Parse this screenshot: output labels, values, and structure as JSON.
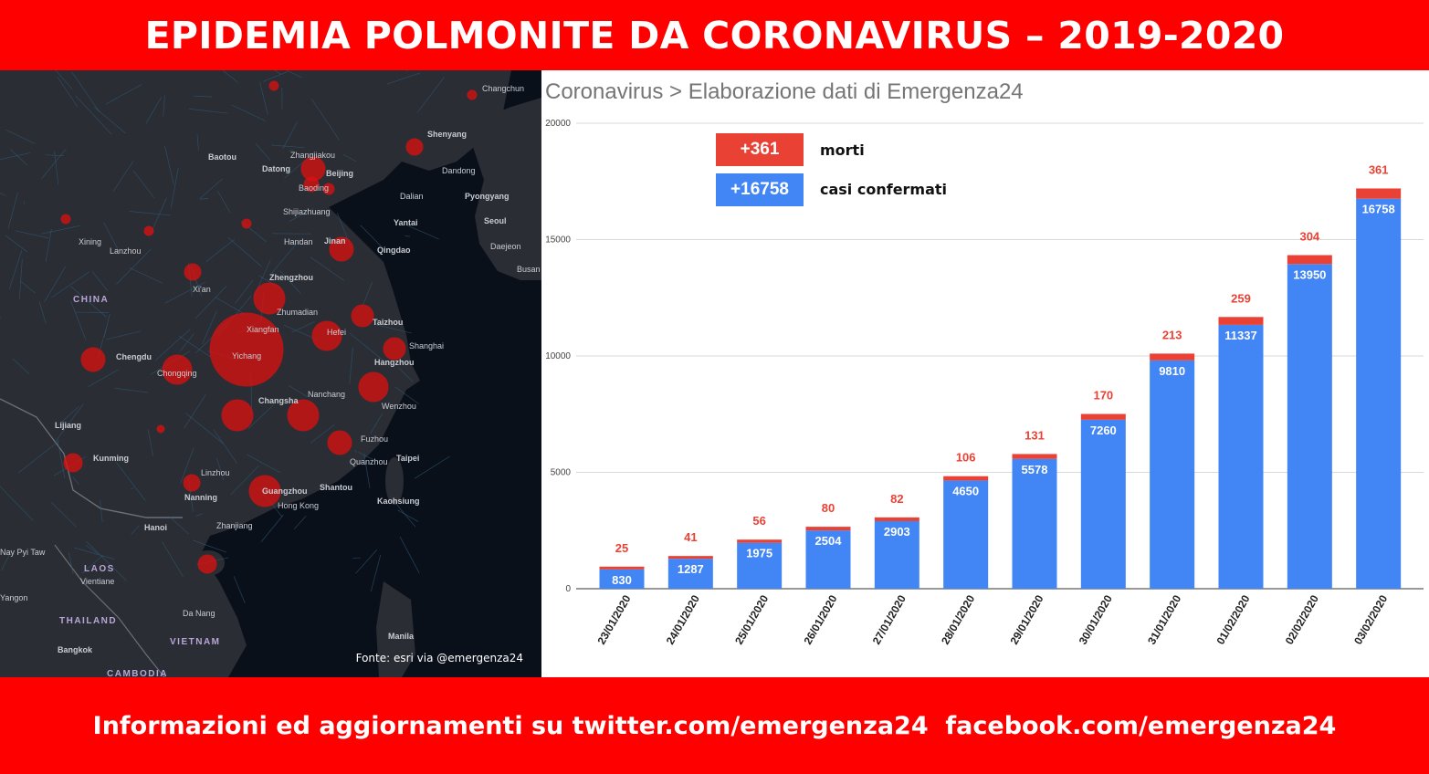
{
  "header": {
    "title": "EPIDEMIA POLMONITE DA CORONAVIRUS – 2019-2020"
  },
  "footer": {
    "text": "Informazioni ed aggiornamenti su twitter.com/emergenza24  facebook.com/emergenza24"
  },
  "map": {
    "source": "Fonte: esri via @emergenza24",
    "marker_color": "#e01010",
    "labels": [
      "Changchun",
      "Shenyang",
      "Baotou",
      "Zhangjiakou",
      "Datong",
      "Beijing",
      "Dandong",
      "Baoding",
      "Dalian",
      "Pyongyang",
      "Shijiazhuang",
      "Yantai",
      "Seoul",
      "Xining",
      "Lanzhou",
      "Handan",
      "Jinan",
      "Qingdao",
      "Daejeon",
      "Busan",
      "Zhengzhou",
      "CHINA",
      "Xi'an",
      "Zhumadian",
      "Taizhou",
      "Xiangfan",
      "Hefei",
      "Shanghai",
      "Chengdu",
      "Yichang",
      "Hangzhou",
      "Chongqing",
      "Nanchang",
      "Wenzhou",
      "Changsha",
      "Lijiang",
      "Fuzhou",
      "Kunming",
      "Taipei",
      "Linzhou",
      "Quanzhou",
      "Nanning",
      "Guangzhou",
      "Shantou",
      "Kaohsiung",
      "Hong Kong",
      "Hanoi",
      "Zhanjiang",
      "Nay Pyi Taw",
      "LAOS",
      "Vientiane",
      "THAILAND",
      "Da Nang",
      "VIETNAM",
      "Bangkok",
      "Manila",
      "CAMBODIA",
      "Yangon"
    ]
  },
  "chart_data": {
    "type": "bar",
    "stacked": true,
    "title": "Coronavirus > Elaborazione dati di Emergenza24",
    "categories": [
      "23/01/2020",
      "24/01/2020",
      "25/01/2020",
      "26/01/2020",
      "27/01/2020",
      "28/01/2020",
      "29/01/2020",
      "30/01/2020",
      "31/01/2020",
      "01/02/2020",
      "02/02/2020",
      "03/02/2020"
    ],
    "series": [
      {
        "name": "casi confermati",
        "color": "#4285f4",
        "values": [
          830,
          1287,
          1975,
          2504,
          2903,
          4650,
          5578,
          7260,
          9810,
          11337,
          13950,
          16758
        ]
      },
      {
        "name": "morti",
        "color": "#e94235",
        "values": [
          25,
          41,
          56,
          80,
          82,
          106,
          131,
          170,
          213,
          259,
          304,
          361
        ]
      }
    ],
    "ylim": [
      0,
      20000
    ],
    "yticks": [
      0,
      5000,
      10000,
      15000,
      20000
    ],
    "grid": true,
    "legend": [
      {
        "value": "+361",
        "label": "morti",
        "color": "#e94235"
      },
      {
        "value": "+16758",
        "label": "casi confermati",
        "color": "#4285f4"
      }
    ]
  }
}
